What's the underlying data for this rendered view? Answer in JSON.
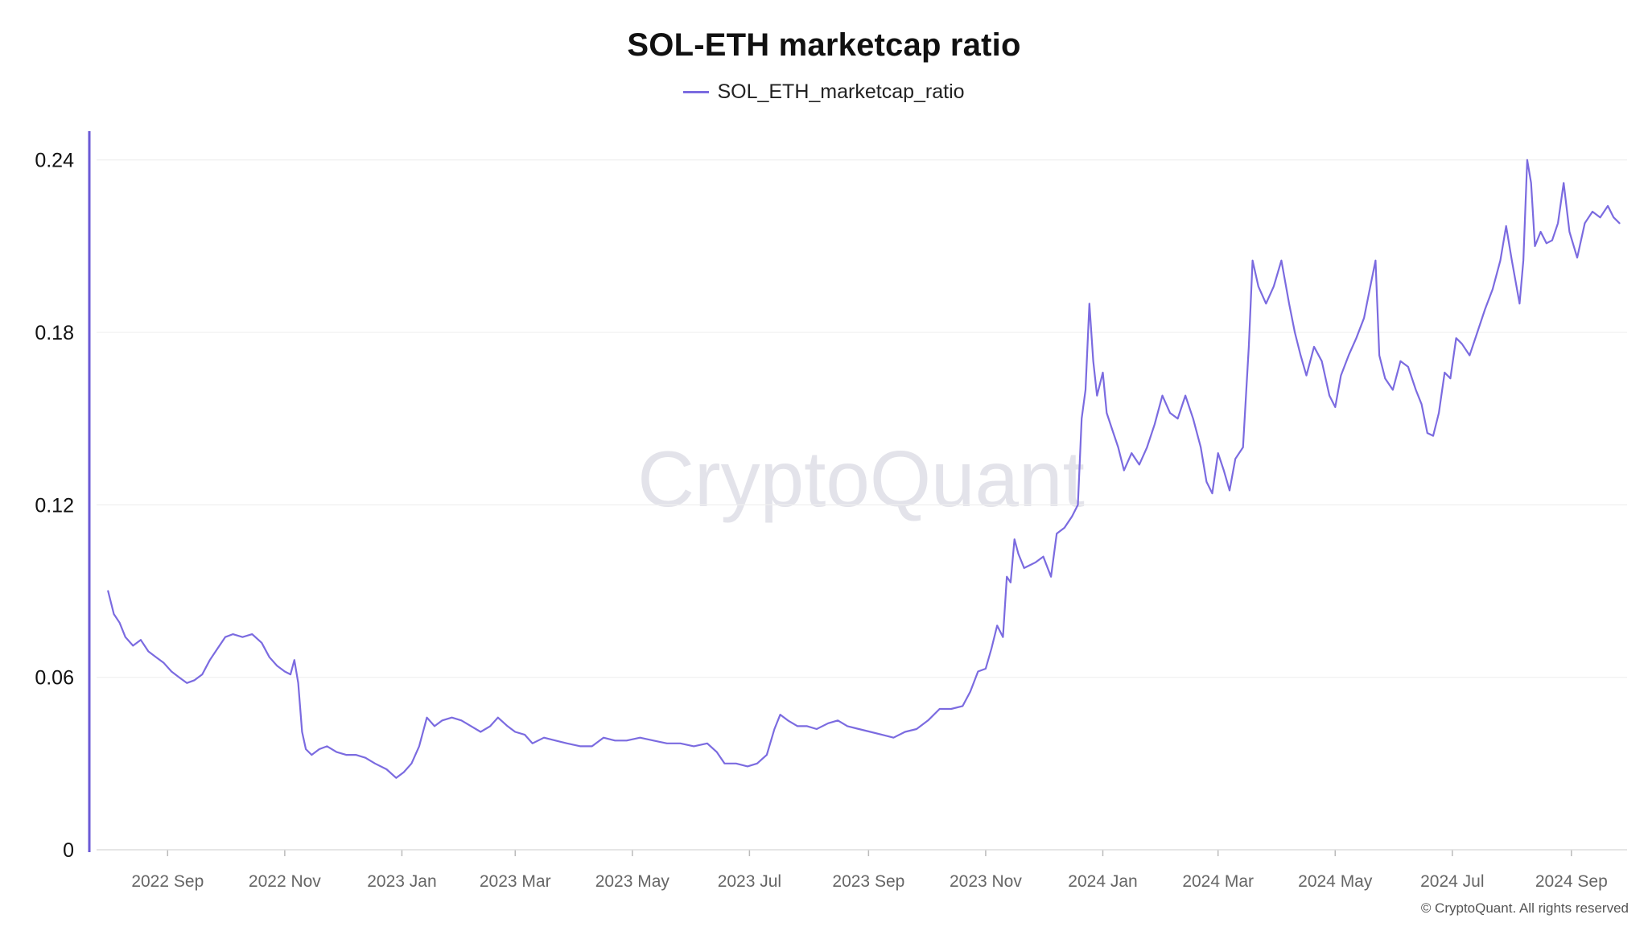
{
  "title": "SOL-ETH marketcap ratio",
  "legend_label": "SOL_ETH_marketcap_ratio",
  "watermark": "CryptoQuant",
  "footer": "© CryptoQuant. All rights reserved",
  "colors": {
    "series": "#7b6be0",
    "axis": "#6b5ad6",
    "grid": "#eeeeee",
    "tick": "#666666",
    "watermark": "#e3e3ea"
  },
  "chart_data": {
    "type": "line",
    "title": "SOL-ETH marketcap ratio",
    "xlabel": "",
    "ylabel": "",
    "ylim": [
      0,
      0.25
    ],
    "grid": true,
    "legend": "top-center",
    "y_ticks": [
      "0",
      "0.06",
      "0.12",
      "0.18",
      "0.24"
    ],
    "y_tick_values": [
      0,
      0.06,
      0.12,
      0.18,
      0.24
    ],
    "x_range": [
      "2022-07-26",
      "2024-09-30"
    ],
    "x_ticks": [
      {
        "label": "2022 Sep",
        "date": "2022-09-01"
      },
      {
        "label": "2022 Nov",
        "date": "2022-11-01"
      },
      {
        "label": "2023 Jan",
        "date": "2023-01-01"
      },
      {
        "label": "2023 Mar",
        "date": "2023-03-01"
      },
      {
        "label": "2023 May",
        "date": "2023-05-01"
      },
      {
        "label": "2023 Jul",
        "date": "2023-07-01"
      },
      {
        "label": "2023 Sep",
        "date": "2023-09-01"
      },
      {
        "label": "2023 Nov",
        "date": "2023-11-01"
      },
      {
        "label": "2024 Jan",
        "date": "2024-01-01"
      },
      {
        "label": "2024 Mar",
        "date": "2024-03-01"
      },
      {
        "label": "2024 May",
        "date": "2024-05-01"
      },
      {
        "label": "2024 Jul",
        "date": "2024-07-01"
      },
      {
        "label": "2024 Sep",
        "date": "2024-09-01"
      }
    ],
    "series": [
      {
        "name": "SOL_ETH_marketcap_ratio",
        "points": [
          [
            "2022-08-01",
            0.09
          ],
          [
            "2022-08-04",
            0.082
          ],
          [
            "2022-08-07",
            0.079
          ],
          [
            "2022-08-10",
            0.074
          ],
          [
            "2022-08-14",
            0.071
          ],
          [
            "2022-08-18",
            0.073
          ],
          [
            "2022-08-22",
            0.069
          ],
          [
            "2022-08-26",
            0.067
          ],
          [
            "2022-08-30",
            0.065
          ],
          [
            "2022-09-03",
            0.062
          ],
          [
            "2022-09-07",
            0.06
          ],
          [
            "2022-09-11",
            0.058
          ],
          [
            "2022-09-15",
            0.059
          ],
          [
            "2022-09-19",
            0.061
          ],
          [
            "2022-09-23",
            0.066
          ],
          [
            "2022-09-27",
            0.07
          ],
          [
            "2022-10-01",
            0.074
          ],
          [
            "2022-10-05",
            0.075
          ],
          [
            "2022-10-10",
            0.074
          ],
          [
            "2022-10-15",
            0.075
          ],
          [
            "2022-10-20",
            0.072
          ],
          [
            "2022-10-24",
            0.067
          ],
          [
            "2022-10-28",
            0.064
          ],
          [
            "2022-11-01",
            0.062
          ],
          [
            "2022-11-04",
            0.061
          ],
          [
            "2022-11-06",
            0.066
          ],
          [
            "2022-11-08",
            0.058
          ],
          [
            "2022-11-10",
            0.041
          ],
          [
            "2022-11-12",
            0.035
          ],
          [
            "2022-11-15",
            0.033
          ],
          [
            "2022-11-19",
            0.035
          ],
          [
            "2022-11-23",
            0.036
          ],
          [
            "2022-11-28",
            0.034
          ],
          [
            "2022-12-03",
            0.033
          ],
          [
            "2022-12-08",
            0.033
          ],
          [
            "2022-12-13",
            0.032
          ],
          [
            "2022-12-18",
            0.03
          ],
          [
            "2022-12-24",
            0.028
          ],
          [
            "2022-12-29",
            0.025
          ],
          [
            "2023-01-02",
            0.027
          ],
          [
            "2023-01-06",
            0.03
          ],
          [
            "2023-01-10",
            0.036
          ],
          [
            "2023-01-14",
            0.046
          ],
          [
            "2023-01-18",
            0.043
          ],
          [
            "2023-01-22",
            0.045
          ],
          [
            "2023-01-27",
            0.046
          ],
          [
            "2023-02-01",
            0.045
          ],
          [
            "2023-02-06",
            0.043
          ],
          [
            "2023-02-11",
            0.041
          ],
          [
            "2023-02-16",
            0.043
          ],
          [
            "2023-02-20",
            0.046
          ],
          [
            "2023-02-25",
            0.043
          ],
          [
            "2023-03-01",
            0.041
          ],
          [
            "2023-03-06",
            0.04
          ],
          [
            "2023-03-10",
            0.037
          ],
          [
            "2023-03-16",
            0.039
          ],
          [
            "2023-03-22",
            0.038
          ],
          [
            "2023-03-28",
            0.037
          ],
          [
            "2023-04-04",
            0.036
          ],
          [
            "2023-04-10",
            0.036
          ],
          [
            "2023-04-16",
            0.039
          ],
          [
            "2023-04-22",
            0.038
          ],
          [
            "2023-04-28",
            0.038
          ],
          [
            "2023-05-05",
            0.039
          ],
          [
            "2023-05-12",
            0.038
          ],
          [
            "2023-05-19",
            0.037
          ],
          [
            "2023-05-26",
            0.037
          ],
          [
            "2023-06-02",
            0.036
          ],
          [
            "2023-06-09",
            0.037
          ],
          [
            "2023-06-14",
            0.034
          ],
          [
            "2023-06-18",
            0.03
          ],
          [
            "2023-06-24",
            0.03
          ],
          [
            "2023-06-30",
            0.029
          ],
          [
            "2023-07-05",
            0.03
          ],
          [
            "2023-07-10",
            0.033
          ],
          [
            "2023-07-14",
            0.042
          ],
          [
            "2023-07-17",
            0.047
          ],
          [
            "2023-07-21",
            0.045
          ],
          [
            "2023-07-26",
            0.043
          ],
          [
            "2023-07-31",
            0.043
          ],
          [
            "2023-08-05",
            0.042
          ],
          [
            "2023-08-11",
            0.044
          ],
          [
            "2023-08-16",
            0.045
          ],
          [
            "2023-08-21",
            0.043
          ],
          [
            "2023-08-27",
            0.042
          ],
          [
            "2023-09-02",
            0.041
          ],
          [
            "2023-09-08",
            0.04
          ],
          [
            "2023-09-14",
            0.039
          ],
          [
            "2023-09-20",
            0.041
          ],
          [
            "2023-09-26",
            0.042
          ],
          [
            "2023-10-02",
            0.045
          ],
          [
            "2023-10-08",
            0.049
          ],
          [
            "2023-10-14",
            0.049
          ],
          [
            "2023-10-20",
            0.05
          ],
          [
            "2023-10-24",
            0.055
          ],
          [
            "2023-10-28",
            0.062
          ],
          [
            "2023-11-01",
            0.063
          ],
          [
            "2023-11-04",
            0.07
          ],
          [
            "2023-11-07",
            0.078
          ],
          [
            "2023-11-10",
            0.074
          ],
          [
            "2023-11-12",
            0.095
          ],
          [
            "2023-11-14",
            0.093
          ],
          [
            "2023-11-16",
            0.108
          ],
          [
            "2023-11-18",
            0.103
          ],
          [
            "2023-11-21",
            0.098
          ],
          [
            "2023-11-24",
            0.099
          ],
          [
            "2023-11-27",
            0.1
          ],
          [
            "2023-12-01",
            0.102
          ],
          [
            "2023-12-05",
            0.095
          ],
          [
            "2023-12-08",
            0.11
          ],
          [
            "2023-12-12",
            0.112
          ],
          [
            "2023-12-16",
            0.116
          ],
          [
            "2023-12-19",
            0.12
          ],
          [
            "2023-12-21",
            0.15
          ],
          [
            "2023-12-23",
            0.16
          ],
          [
            "2023-12-25",
            0.19
          ],
          [
            "2023-12-27",
            0.17
          ],
          [
            "2023-12-29",
            0.158
          ],
          [
            "2024-01-01",
            0.166
          ],
          [
            "2024-01-03",
            0.152
          ],
          [
            "2024-01-06",
            0.146
          ],
          [
            "2024-01-09",
            0.14
          ],
          [
            "2024-01-12",
            0.132
          ],
          [
            "2024-01-16",
            0.138
          ],
          [
            "2024-01-20",
            0.134
          ],
          [
            "2024-01-24",
            0.14
          ],
          [
            "2024-01-28",
            0.148
          ],
          [
            "2024-02-01",
            0.158
          ],
          [
            "2024-02-05",
            0.152
          ],
          [
            "2024-02-09",
            0.15
          ],
          [
            "2024-02-13",
            0.158
          ],
          [
            "2024-02-17",
            0.15
          ],
          [
            "2024-02-21",
            0.14
          ],
          [
            "2024-02-24",
            0.128
          ],
          [
            "2024-02-27",
            0.124
          ],
          [
            "2024-03-01",
            0.138
          ],
          [
            "2024-03-04",
            0.132
          ],
          [
            "2024-03-07",
            0.125
          ],
          [
            "2024-03-10",
            0.136
          ],
          [
            "2024-03-14",
            0.14
          ],
          [
            "2024-03-17",
            0.175
          ],
          [
            "2024-03-19",
            0.205
          ],
          [
            "2024-03-22",
            0.196
          ],
          [
            "2024-03-26",
            0.19
          ],
          [
            "2024-03-30",
            0.196
          ],
          [
            "2024-04-03",
            0.205
          ],
          [
            "2024-04-07",
            0.19
          ],
          [
            "2024-04-10",
            0.18
          ],
          [
            "2024-04-13",
            0.172
          ],
          [
            "2024-04-16",
            0.165
          ],
          [
            "2024-04-20",
            0.175
          ],
          [
            "2024-04-24",
            0.17
          ],
          [
            "2024-04-28",
            0.158
          ],
          [
            "2024-05-01",
            0.154
          ],
          [
            "2024-05-04",
            0.165
          ],
          [
            "2024-05-08",
            0.172
          ],
          [
            "2024-05-12",
            0.178
          ],
          [
            "2024-05-16",
            0.185
          ],
          [
            "2024-05-19",
            0.195
          ],
          [
            "2024-05-22",
            0.205
          ],
          [
            "2024-05-24",
            0.172
          ],
          [
            "2024-05-27",
            0.164
          ],
          [
            "2024-05-31",
            0.16
          ],
          [
            "2024-06-04",
            0.17
          ],
          [
            "2024-06-08",
            0.168
          ],
          [
            "2024-06-12",
            0.16
          ],
          [
            "2024-06-15",
            0.155
          ],
          [
            "2024-06-18",
            0.145
          ],
          [
            "2024-06-21",
            0.144
          ],
          [
            "2024-06-24",
            0.152
          ],
          [
            "2024-06-27",
            0.166
          ],
          [
            "2024-06-30",
            0.164
          ],
          [
            "2024-07-03",
            0.178
          ],
          [
            "2024-07-06",
            0.176
          ],
          [
            "2024-07-10",
            0.172
          ],
          [
            "2024-07-14",
            0.18
          ],
          [
            "2024-07-18",
            0.188
          ],
          [
            "2024-07-22",
            0.195
          ],
          [
            "2024-07-26",
            0.205
          ],
          [
            "2024-07-29",
            0.217
          ],
          [
            "2024-08-01",
            0.205
          ],
          [
            "2024-08-05",
            0.19
          ],
          [
            "2024-08-07",
            0.205
          ],
          [
            "2024-08-09",
            0.24
          ],
          [
            "2024-08-11",
            0.232
          ],
          [
            "2024-08-13",
            0.21
          ],
          [
            "2024-08-16",
            0.215
          ],
          [
            "2024-08-19",
            0.211
          ],
          [
            "2024-08-22",
            0.212
          ],
          [
            "2024-08-25",
            0.218
          ],
          [
            "2024-08-28",
            0.232
          ],
          [
            "2024-08-31",
            0.215
          ],
          [
            "2024-09-04",
            0.206
          ],
          [
            "2024-09-08",
            0.218
          ],
          [
            "2024-09-12",
            0.222
          ],
          [
            "2024-09-16",
            0.22
          ],
          [
            "2024-09-20",
            0.224
          ],
          [
            "2024-09-23",
            0.22
          ],
          [
            "2024-09-26",
            0.218
          ]
        ]
      }
    ]
  }
}
